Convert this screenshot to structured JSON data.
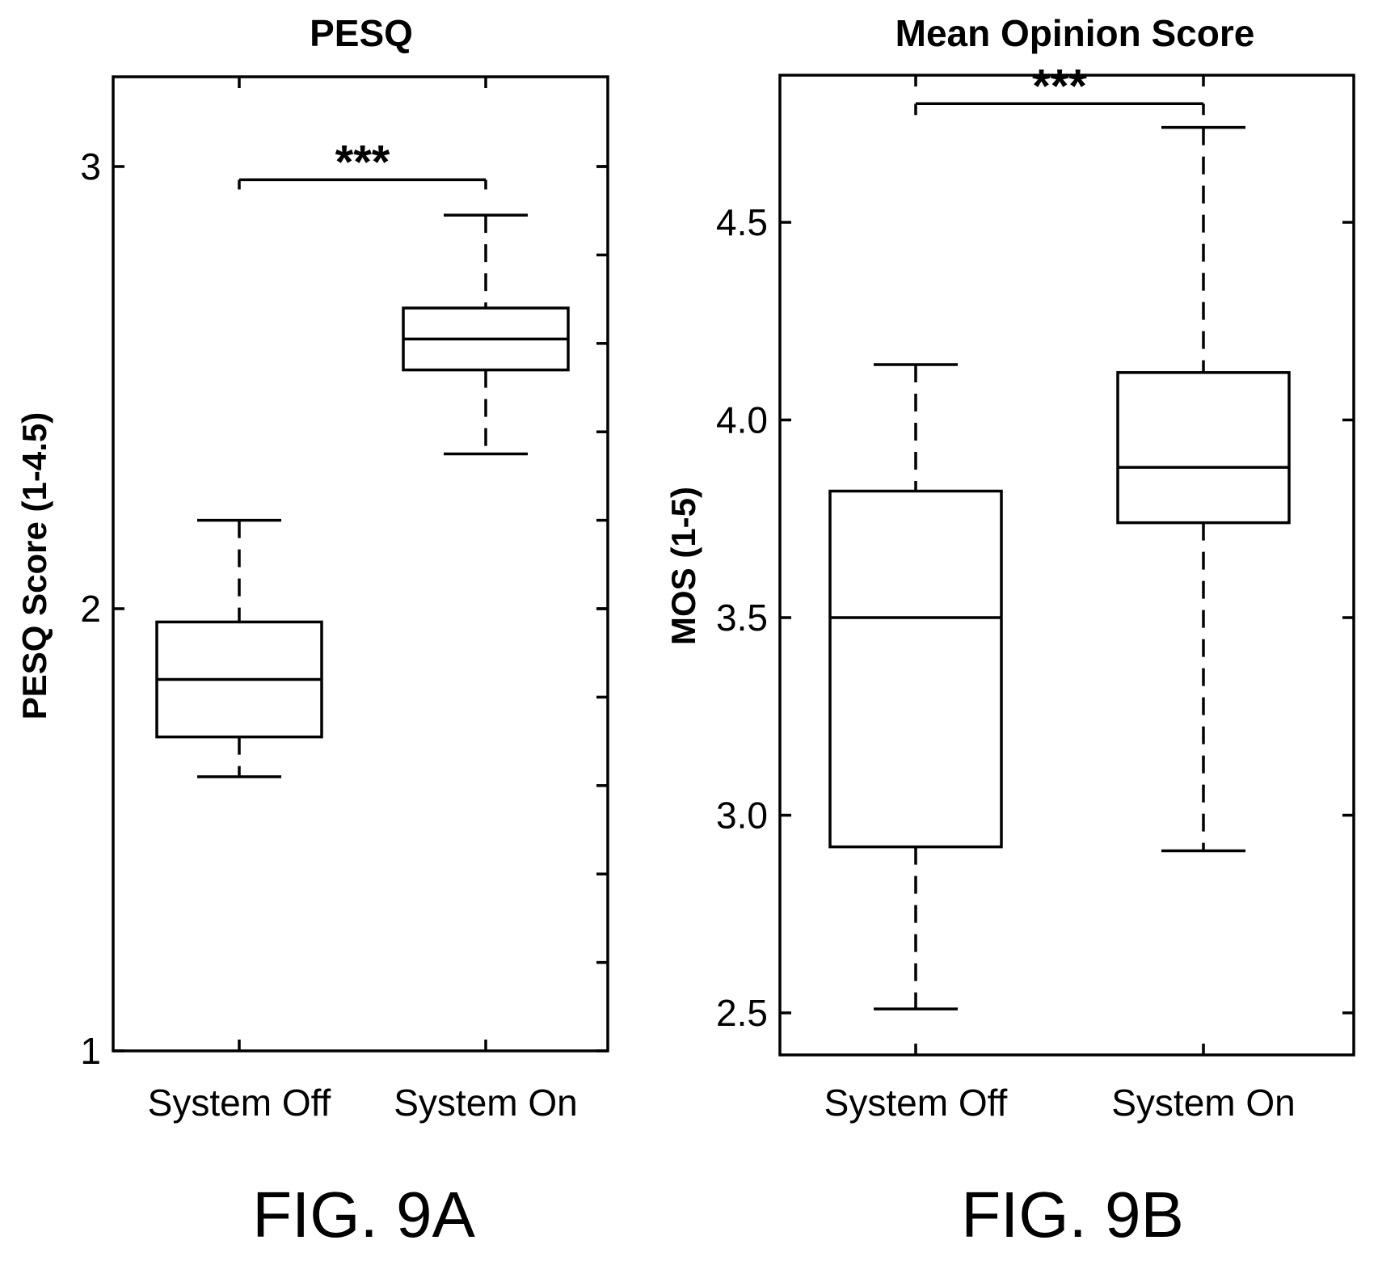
{
  "chart_data": [
    {
      "type": "box",
      "title": "PESQ",
      "ylabel": "PESQ Score (1-4.5)",
      "xlabel": "",
      "categories": [
        "System Off",
        "System On"
      ],
      "yticks": [
        "1",
        "2",
        "3"
      ],
      "ylim": [
        1,
        3.2
      ],
      "minor_tick_step": 0.2,
      "boxes": [
        {
          "category": "System Off",
          "whisker_low": 1.62,
          "q1": 1.71,
          "median": 1.84,
          "q3": 1.97,
          "whisker_high": 2.2
        },
        {
          "category": "System On",
          "whisker_low": 2.35,
          "q1": 2.54,
          "median": 2.61,
          "q3": 2.68,
          "whisker_high": 2.89
        }
      ],
      "significance": "***",
      "significance_y": 2.97,
      "caption": "FIG. 9A"
    },
    {
      "type": "box",
      "title": "Mean Opinion Score",
      "ylabel": "MOS (1-5)",
      "xlabel": "",
      "categories": [
        "System Off",
        "System On"
      ],
      "yticks": [
        "2.5",
        "3.0",
        "3.5",
        "4.0",
        "4.5"
      ],
      "ylim": [
        2.38,
        4.86
      ],
      "boxes": [
        {
          "category": "System Off",
          "whisker_low": 2.51,
          "q1": 2.92,
          "median": 3.5,
          "q3": 3.82,
          "whisker_high": 4.14
        },
        {
          "category": "System On",
          "whisker_low": 2.91,
          "q1": 3.74,
          "median": 3.88,
          "q3": 4.12,
          "whisker_high": 4.74
        }
      ],
      "significance": "***",
      "significance_y": 4.8,
      "caption": "FIG. 9B"
    }
  ]
}
